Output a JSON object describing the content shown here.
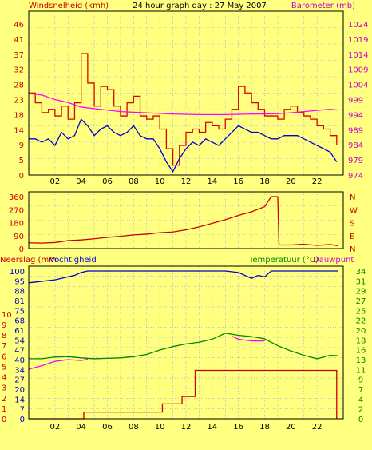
{
  "chart_data": [
    {
      "type": "line",
      "title": "24 hour graph day : 27 May 2007",
      "left_axis_label": "Windsnelheid (kmh)",
      "right_axis_label": "Barometer (mb)",
      "x_ticks": [
        "02",
        "04",
        "06",
        "08",
        "10",
        "12",
        "14",
        "16",
        "18",
        "20",
        "22"
      ],
      "x_range": [
        0,
        24
      ],
      "left_ylim": [
        0,
        46
      ],
      "left_ticks": [
        "0",
        "5",
        "9",
        "14",
        "18",
        "23",
        "28",
        "32",
        "37",
        "41",
        "46"
      ],
      "right_ylim": [
        974,
        1024
      ],
      "right_ticks": [
        "974",
        "979",
        "984",
        "989",
        "994",
        "999",
        "1004",
        "1009",
        "1014",
        "1019",
        "1024"
      ],
      "series": [
        {
          "color": "#dd0000",
          "axis": "left",
          "x": [
            0,
            0.5,
            1,
            1.5,
            2,
            2.5,
            3,
            3.5,
            4,
            4.5,
            5,
            5.5,
            6,
            6.5,
            7,
            7.5,
            8,
            8.5,
            9,
            9.5,
            10,
            10.5,
            11,
            11.5,
            12,
            12.5,
            13,
            13.5,
            14,
            14.5,
            15,
            15.5,
            16,
            16.5,
            17,
            17.5,
            18,
            18.5,
            19,
            19.5,
            20,
            20.5,
            21,
            21.5,
            22,
            22.5,
            23,
            23.5
          ],
          "y": [
            25,
            22,
            19,
            20,
            18,
            21,
            17,
            22,
            37,
            28,
            21,
            27,
            26,
            21,
            18,
            22,
            24,
            18,
            17,
            18,
            14,
            8,
            3,
            9,
            13,
            14,
            13,
            16,
            15,
            14,
            17,
            20,
            27,
            25,
            22,
            20,
            18,
            18,
            17,
            20,
            21,
            19,
            18,
            17,
            15,
            14,
            12,
            9
          ]
        },
        {
          "color": "#0000cc",
          "axis": "left",
          "x": [
            0,
            0.5,
            1,
            1.5,
            2,
            2.5,
            3,
            3.5,
            4,
            4.5,
            5,
            5.5,
            6,
            6.5,
            7,
            7.5,
            8,
            8.5,
            9,
            9.5,
            10,
            10.5,
            11,
            11.5,
            12,
            12.5,
            13,
            13.5,
            14,
            14.5,
            15,
            15.5,
            16,
            16.5,
            17,
            17.5,
            18,
            18.5,
            19,
            19.5,
            20,
            20.5,
            21,
            21.5,
            22,
            22.5,
            23,
            23.5
          ],
          "y": [
            11,
            11,
            10,
            11,
            9,
            13,
            11,
            12,
            17,
            15,
            12,
            14,
            15,
            13,
            12,
            13,
            15,
            12,
            11,
            11,
            8,
            4,
            1,
            5,
            8,
            10,
            9,
            11,
            10,
            9,
            11,
            13,
            15,
            14,
            13,
            13,
            12,
            11,
            11,
            12,
            12,
            12,
            11,
            10,
            9,
            8,
            7,
            4
          ]
        },
        {
          "color": "#ff00ff",
          "axis": "right",
          "x": [
            0,
            1,
            2,
            3,
            4,
            5,
            6,
            7,
            8,
            9,
            10,
            11,
            12,
            13,
            14,
            15,
            16,
            17,
            18,
            19,
            20,
            21,
            22,
            23,
            23.6
          ],
          "y": [
            1001,
            1000.5,
            999,
            998,
            996.5,
            996,
            995.5,
            995,
            994.8,
            994.6,
            994.4,
            994.2,
            994.1,
            994,
            994,
            994,
            994.1,
            994.2,
            994.2,
            994.3,
            994.6,
            995,
            995.4,
            995.8,
            995.5
          ]
        }
      ]
    },
    {
      "type": "line",
      "right_axis_label": "N W S E N",
      "x_range": [
        0,
        24
      ],
      "ylim": [
        0,
        360
      ],
      "ticks": [
        "0",
        "90",
        "180",
        "270",
        "360"
      ],
      "series": [
        {
          "color": "#cc0000",
          "x": [
            0,
            1,
            2,
            3,
            4,
            5,
            6,
            7,
            8,
            9,
            10,
            11,
            12,
            13,
            14,
            15,
            16,
            17,
            18,
            18.5,
            19,
            19.1,
            20,
            21,
            22,
            23,
            23.6
          ],
          "y": [
            40,
            38,
            42,
            55,
            60,
            68,
            78,
            85,
            95,
            100,
            110,
            115,
            130,
            150,
            175,
            200,
            230,
            255,
            290,
            360,
            360,
            25,
            25,
            30,
            22,
            28,
            20
          ]
        }
      ]
    },
    {
      "type": "line",
      "left_axis_label": "Neerslag (mm",
      "left_axis_label2": "Vochtigheid",
      "right_axis_label": "Temperatuur (°C)",
      "right_axis_label2": "Dauwpunt",
      "x_ticks": [
        "02",
        "04",
        "06",
        "08",
        "10",
        "12",
        "14",
        "16",
        "18",
        "20",
        "22"
      ],
      "x_range": [
        0,
        24
      ],
      "rain_ticks": [
        "0",
        "1",
        "2",
        "3",
        "4",
        "5",
        "6",
        "7",
        "8",
        "9",
        "10"
      ],
      "humidity_ticks": [
        "0",
        "7",
        "14",
        "20",
        "27",
        "34",
        "40",
        "47",
        "54",
        "61",
        "68",
        "75",
        "81",
        "88",
        "95",
        "100"
      ],
      "temp_ticks": [
        "0",
        "2",
        "4",
        "7",
        "9",
        "11",
        "13",
        "16",
        "18",
        "20",
        "22",
        "25",
        "27",
        "29",
        "31",
        "34"
      ],
      "humidity_ylim": [
        0,
        100
      ],
      "temp_ylim": [
        0,
        34
      ],
      "series": [
        {
          "color": "#0000cc",
          "axis": "humidity",
          "x": [
            0,
            1,
            2,
            3,
            3.5,
            4,
            4.5,
            5,
            6,
            7,
            8,
            9,
            10,
            11,
            12,
            13,
            14,
            15,
            16,
            16.5,
            17,
            17.5,
            18,
            18.5,
            19,
            20,
            21,
            22,
            23,
            23.6
          ],
          "y": [
            92,
            93,
            94,
            96,
            97,
            99,
            100,
            100,
            100,
            100,
            100,
            100,
            100,
            100,
            100,
            100,
            100,
            100,
            99,
            97,
            95,
            97,
            96,
            100,
            100,
            100,
            100,
            100,
            100,
            100
          ]
        },
        {
          "color": "#008800",
          "axis": "temp",
          "x": [
            0,
            1,
            2,
            3,
            4,
            5,
            6,
            7,
            8,
            9,
            10,
            11,
            12,
            13,
            14,
            15,
            16,
            17,
            18,
            19,
            20,
            21,
            22,
            23,
            23.6
          ],
          "y": [
            13.8,
            13.8,
            14.2,
            14.3,
            14,
            13.8,
            13.9,
            14,
            14.3,
            14.8,
            15.8,
            16.6,
            17.2,
            17.6,
            18.3,
            19.7,
            19.2,
            18.9,
            18.4,
            16.8,
            15.6,
            14.6,
            13.8,
            14.6,
            14.5
          ]
        },
        {
          "color": "#ff00ff",
          "axis": "temp",
          "x": [
            0,
            1,
            2,
            3,
            4,
            4.5
          ],
          "y": [
            11.4,
            12.2,
            13.2,
            13.6,
            13.4,
            13.7
          ]
        },
        {
          "color": "#ff00ff",
          "axis": "temp",
          "x": [
            15.5,
            16,
            17,
            18
          ],
          "y": [
            19,
            18.3,
            17.9,
            17.9
          ]
        },
        {
          "color": "#cc0000",
          "axis": "rain",
          "x": [
            0,
            4,
            4.2,
            10,
            10.2,
            11.5,
            11.7,
            12.5,
            12.7,
            23.5,
            23.5
          ],
          "y": [
            0,
            0,
            0.9,
            0.9,
            2,
            2,
            3,
            3,
            6.5,
            6.5,
            0
          ]
        }
      ]
    }
  ]
}
